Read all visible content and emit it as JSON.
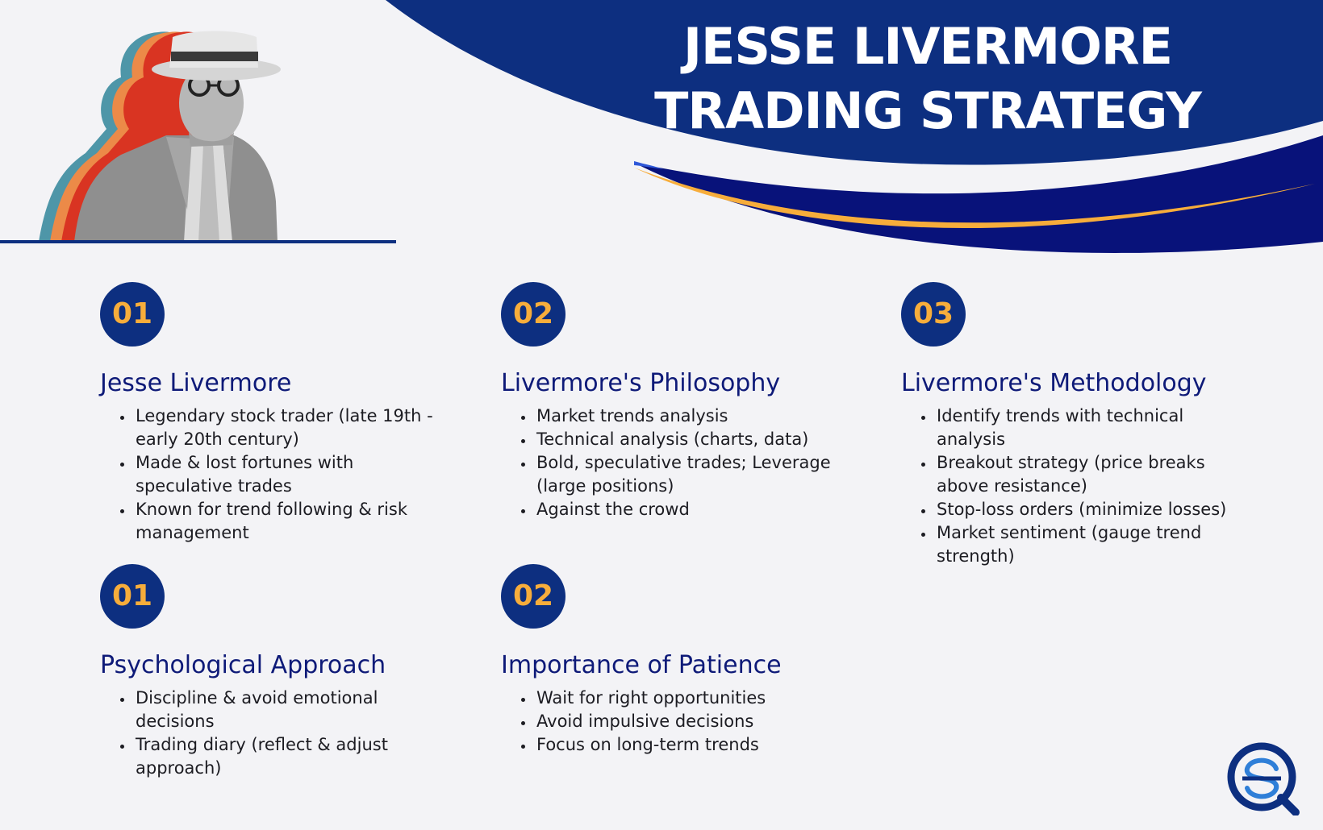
{
  "title": {
    "line1": "JESSE LIVERMORE",
    "line2": "TRADING STRATEGY"
  },
  "colors": {
    "navy": "#0d2f80",
    "dark_blue": "#08127a",
    "orange": "#f7ad3b",
    "heading": "#0e1a78",
    "background": "#f3f3f6"
  },
  "portrait": {
    "icon": "portrait-photo"
  },
  "sections": [
    {
      "number": "01",
      "heading": "Jesse Livermore",
      "bullets": [
        "Legendary stock trader (late 19th - early 20th century)",
        "Made & lost fortunes with speculative trades",
        "Known for trend following & risk management"
      ]
    },
    {
      "number": "02",
      "heading": "Livermore's Philosophy",
      "bullets": [
        "Market trends analysis",
        "Technical analysis (charts, data)",
        "Bold, speculative trades; Leverage (large positions)",
        "Against the crowd"
      ]
    },
    {
      "number": "03",
      "heading": "Livermore's Methodology",
      "bullets": [
        "Identify trends with technical analysis",
        "Breakout strategy (price breaks above resistance)",
        "Stop-loss orders (minimize losses)",
        "Market sentiment (gauge trend strength)"
      ]
    },
    {
      "number": "01",
      "heading": "Psychological Approach",
      "bullets": [
        "Discipline & avoid emotional decisions",
        "Trading diary (reflect & adjust approach)"
      ]
    },
    {
      "number": "02",
      "heading": "Importance of Patience",
      "bullets": [
        "Wait for right opportunities",
        "Avoid impulsive decisions",
        "Focus on long-term trends"
      ]
    }
  ],
  "logo": {
    "icon": "brand-logo-icon"
  }
}
